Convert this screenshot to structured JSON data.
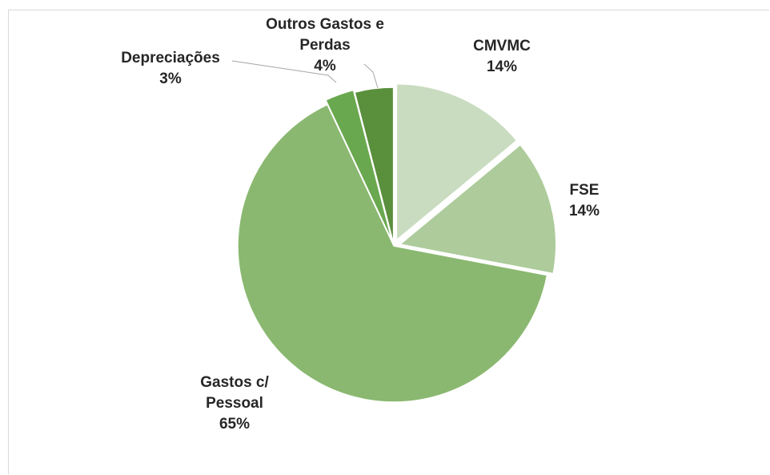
{
  "chart_data": {
    "type": "pie",
    "categories": [
      "CMVMC",
      "FSE",
      "Gastos c/ Pessoal",
      "Depreciações",
      "Outros Gastos e Perdas"
    ],
    "values": [
      14,
      14,
      65,
      3,
      4
    ],
    "value_labels": [
      "14%",
      "14%",
      "65%",
      "3%",
      "4%"
    ],
    "colors": [
      "#c9dcc0",
      "#adcb9b",
      "#8ab870",
      "#6aa84f",
      "#5a8f3c"
    ]
  }
}
